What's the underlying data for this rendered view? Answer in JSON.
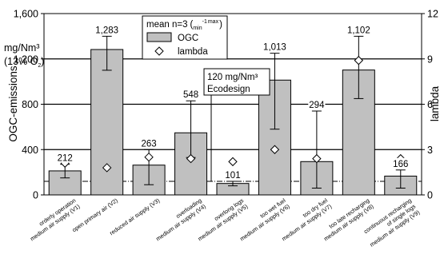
{
  "chart_data": {
    "type": "bar",
    "title": "",
    "ylabel": "OGC-emissions",
    "unit_label": [
      "mg/Nm³",
      "(13% O",
      "2",
      ")"
    ],
    "y2label": "lambda",
    "ylim": [
      0,
      1600
    ],
    "yticks": [
      "0",
      "400",
      "800",
      "1,200",
      "1,600"
    ],
    "y2lim": [
      0,
      12
    ],
    "y2ticks": [
      "0",
      "3",
      "6",
      "9",
      "12"
    ],
    "grid": "horizontal",
    "legend": {
      "title_prefix": "mean n=3",
      "title_paren_open": "(",
      "title_min": "min",
      "title_sup": "-1",
      "title_max": "max",
      "title_paren_close": ")",
      "ogc": "OGC",
      "lambda": "lambda",
      "placement": "top-center"
    },
    "ecodesign": {
      "value": 120,
      "label_line1": "120 mg/Nm³",
      "label_line2": "Ecodesign"
    },
    "categories": [
      [
        "orderly operation",
        "medium air supply (V1)"
      ],
      [
        "open primary air (V2)"
      ],
      [
        "reduced air supply (V3)"
      ],
      [
        "overloading",
        "medium air supply (V4)"
      ],
      [
        "overlong logs",
        "medium air supply (V5)"
      ],
      [
        "too wet fuel",
        "medium air supply (V6)"
      ],
      [
        "too dry fuel",
        "medium air supply (V7)"
      ],
      [
        "too late recharging",
        "medium air supply (V8)"
      ],
      [
        "continuous recharging",
        "of single logs",
        "medium air supply (V9)"
      ]
    ],
    "series": [
      {
        "name": "OGC",
        "values": [
          212,
          1283,
          263,
          548,
          101,
          1013,
          294,
          1102,
          166
        ],
        "labels": [
          "212",
          "1,283",
          "263",
          "548",
          "101",
          "1,013",
          "294",
          "1,102",
          "166"
        ],
        "err_low": [
          150,
          1100,
          90,
          330,
          80,
          580,
          60,
          850,
          60
        ],
        "err_high": [
          270,
          1400,
          400,
          830,
          120,
          1250,
          740,
          1400,
          220
        ]
      },
      {
        "name": "lambda",
        "values": [
          2.1,
          1.8,
          2.5,
          2.4,
          2.2,
          3.0,
          2.4,
          8.9,
          2.4
        ]
      }
    ],
    "colors": {
      "bar": "#c0c0c0",
      "bar_stroke": "#000000"
    }
  }
}
